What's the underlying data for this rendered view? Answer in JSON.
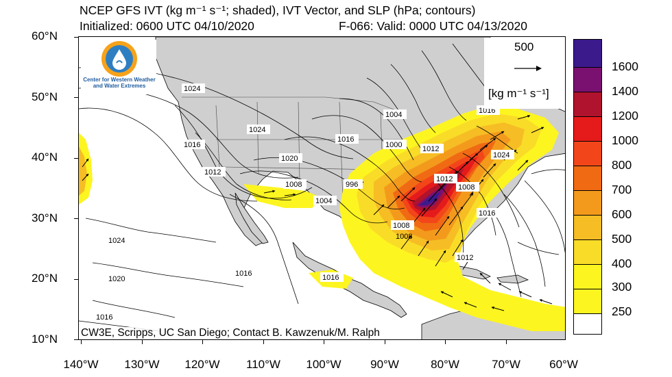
{
  "header": {
    "title": "NCEP GFS IVT (kg m⁻¹ s⁻¹; shaded), IVT Vector, and SLP (hPa; contours)",
    "initialized": "Initialized: 0600 UTC 04/10/2020",
    "valid": "F-066: Valid: 0000 UTC 04/13/2020"
  },
  "logo": {
    "text_line1": "Center for Western Weather",
    "text_line2": "and Water Extremes"
  },
  "reference_vector": {
    "value": "500",
    "unit": "[kg m⁻¹ s⁻¹]"
  },
  "credit": "CW3E, Scripps, UC San Diego; Contact B. Kawzenuk/M. Ralph",
  "axes": {
    "lat_labels": [
      "60°N",
      "50°N",
      "40°N",
      "30°N",
      "20°N",
      "10°N"
    ],
    "lon_labels": [
      "140°W",
      "130°W",
      "120°W",
      "110°W",
      "100°W",
      "90°W",
      "80°W",
      "70°W",
      "60°W"
    ],
    "lat_range": [
      10,
      60
    ],
    "lon_range": [
      -140,
      -60
    ]
  },
  "colorbar": {
    "labels": [
      "1600",
      "1400",
      "1200",
      "1000",
      "800",
      "700",
      "600",
      "500",
      "400",
      "300",
      "250"
    ],
    "colors": [
      "#3b1a8c",
      "#7a1170",
      "#b0132d",
      "#e51b1b",
      "#f2461a",
      "#f06a14",
      "#f39a1c",
      "#f6bd24",
      "#f9dc28",
      "#fdf520",
      "#ffffff"
    ]
  },
  "isobar_labels": [
    "1024",
    "1024",
    "1016",
    "1012",
    "1020",
    "1008",
    "1004",
    "996",
    "1016",
    "1000",
    "1012",
    "1004",
    "1008",
    "1012",
    "1016",
    "1008",
    "1024",
    "1024",
    "1020",
    "1016",
    "1016",
    "1016",
    "1008",
    "1012",
    "1016"
  ],
  "map_colors": {
    "land": "#cfcfcf",
    "ocean": "#ffffff",
    "contour": "#000000"
  }
}
